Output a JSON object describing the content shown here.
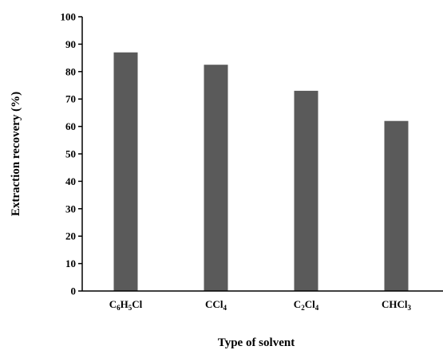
{
  "chart_data": {
    "type": "bar",
    "categories": [
      {
        "parts": [
          [
            "C",
            ""
          ],
          [
            "6",
            "sub"
          ],
          [
            "H",
            ""
          ],
          [
            "5",
            "sub"
          ],
          [
            "Cl",
            ""
          ]
        ]
      },
      {
        "parts": [
          [
            "CCl",
            ""
          ],
          [
            "4",
            "sub"
          ]
        ]
      },
      {
        "parts": [
          [
            "C",
            ""
          ],
          [
            "2",
            "sub"
          ],
          [
            "Cl",
            ""
          ],
          [
            "4",
            "sub"
          ]
        ]
      },
      {
        "parts": [
          [
            "CHCl",
            ""
          ],
          [
            "3",
            "sub"
          ]
        ]
      }
    ],
    "values": [
      87,
      82.5,
      73,
      62
    ],
    "xlabel": "Type of solvent",
    "ylabel": "Extraction recovery (%)",
    "ylim": [
      0,
      100
    ],
    "yticks": [
      "0",
      "10",
      "20",
      "30",
      "40",
      "50",
      "60",
      "70",
      "80",
      "90",
      "100"
    ],
    "bar_color": "#5a5a5a",
    "grid": false,
    "legend": "none"
  }
}
